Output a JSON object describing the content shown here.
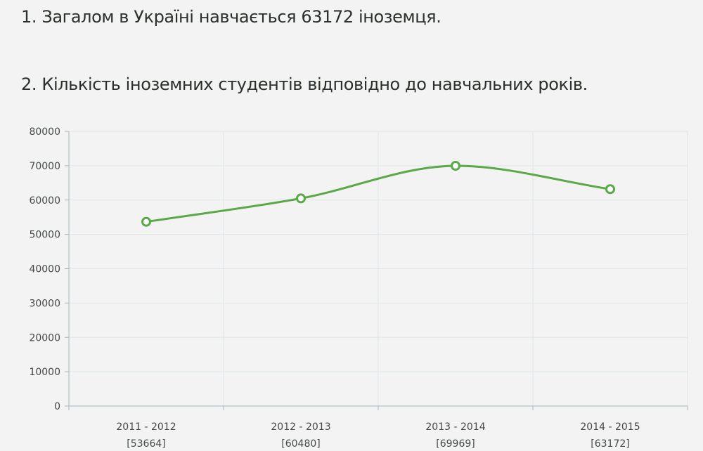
{
  "headings": {
    "total": "1. Загалом в Україні навчається 63172 іноземця.",
    "chart_title": "2. Кількість іноземних студентів відповідно до навчальних років."
  },
  "colors": {
    "line": "#5aa848",
    "grid": "#dfe6e9",
    "axis": "#aab4ba",
    "background": "#f2f3f2"
  },
  "chart_data": {
    "type": "line",
    "categories": [
      "2011 - 2012",
      "2012 - 2013",
      "2013 - 2014",
      "2014 - 2015"
    ],
    "category_sublabels": [
      "[53664]",
      "[60480]",
      "[69969]",
      "[63172]"
    ],
    "series": [
      {
        "values": [
          53664,
          60480,
          69969,
          63172
        ]
      }
    ],
    "ylim": [
      0,
      80000
    ],
    "yticks": [
      0,
      10000,
      20000,
      30000,
      40000,
      50000,
      60000,
      70000,
      80000
    ],
    "grid": true,
    "smooth": true,
    "markers": "hollow-circle",
    "xlabel": "",
    "ylabel": "",
    "legend": "none"
  }
}
